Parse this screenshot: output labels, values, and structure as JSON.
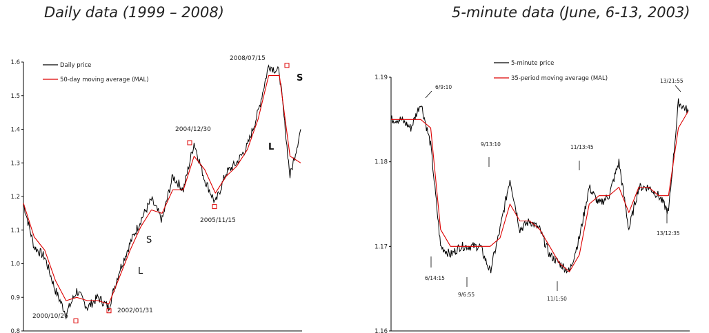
{
  "titles": {
    "left": "Daily data (1999 – 2008)",
    "right": "5-minute data (June, 6-13, 2003)"
  },
  "colors": {
    "price": "#000000",
    "ma": "#dd0000",
    "marker": "#dd0000"
  },
  "chart_data": [
    {
      "type": "line",
      "title": "Daily data (1999 – 2008)",
      "ylim": [
        0.8,
        1.6
      ],
      "yticks": [
        "0.8",
        "0.9",
        "1.0",
        "1.1",
        "1.2",
        "1.3",
        "1.4",
        "1.5",
        "1.6"
      ],
      "grid": false,
      "legend": "top-left",
      "series": [
        {
          "name": "Daily price",
          "values": [
            1.18,
            1.05,
            1.02,
            0.92,
            0.85,
            0.92,
            0.87,
            0.9,
            0.87,
            0.98,
            1.06,
            1.13,
            1.19,
            1.13,
            1.26,
            1.22,
            1.36,
            1.25,
            1.18,
            1.27,
            1.3,
            1.35,
            1.45,
            1.59,
            1.57,
            1.26,
            1.4
          ]
        },
        {
          "name": "50-day moving average (MAL)",
          "values": [
            1.18,
            1.08,
            1.04,
            0.95,
            0.89,
            0.9,
            0.89,
            0.89,
            0.88,
            0.96,
            1.04,
            1.11,
            1.16,
            1.15,
            1.22,
            1.22,
            1.32,
            1.28,
            1.21,
            1.26,
            1.29,
            1.34,
            1.43,
            1.56,
            1.56,
            1.32,
            1.3
          ]
        }
      ],
      "annotations": {
        "d1": "2000/10/26",
        "d2": "2002/01/31",
        "d3": "2004/12/30",
        "d4": "2005/11/15",
        "d5": "2008/07/15",
        "s1": "S",
        "l1": "L",
        "l2": "L",
        "s2": "S"
      },
      "marked_points": [
        {
          "label": "2000/10/26",
          "value": 0.83
        },
        {
          "label": "2002/01/31",
          "value": 0.86
        },
        {
          "label": "2004/12/30",
          "value": 1.36
        },
        {
          "label": "2005/11/15",
          "value": 1.17
        },
        {
          "label": "2008/07/15",
          "value": 1.59
        }
      ]
    },
    {
      "type": "line",
      "title": "5-minute data (June, 6-13, 2003)",
      "ylim": [
        1.16,
        1.19
      ],
      "yticks": [
        "1.16",
        "1.17",
        "1.18",
        "1.19"
      ],
      "grid": false,
      "legend": "top-center",
      "series": [
        {
          "name": "5-minute price",
          "values": [
            1.185,
            1.185,
            1.184,
            1.187,
            1.182,
            1.17,
            1.169,
            1.17,
            1.17,
            1.17,
            1.167,
            1.172,
            1.178,
            1.172,
            1.173,
            1.172,
            1.169,
            1.168,
            1.167,
            1.171,
            1.177,
            1.175,
            1.176,
            1.18,
            1.172,
            1.177,
            1.177,
            1.176,
            1.174,
            1.187,
            1.186
          ]
        },
        {
          "name": "35-period moving average (MAL)",
          "values": [
            1.185,
            1.185,
            1.185,
            1.185,
            1.184,
            1.172,
            1.17,
            1.17,
            1.17,
            1.17,
            1.17,
            1.171,
            1.175,
            1.173,
            1.173,
            1.172,
            1.17,
            1.168,
            1.167,
            1.169,
            1.175,
            1.176,
            1.176,
            1.177,
            1.174,
            1.177,
            1.177,
            1.176,
            1.176,
            1.184,
            1.186
          ]
        }
      ],
      "annotations": {
        "a1": "6/9:10",
        "a2": "6/14:15",
        "a3": "9/6:55",
        "a4": "9/13:10",
        "a5": "11/1:50",
        "a6": "11/13:45",
        "a7": "13/12:35",
        "a8": "13/21:55"
      }
    }
  ]
}
